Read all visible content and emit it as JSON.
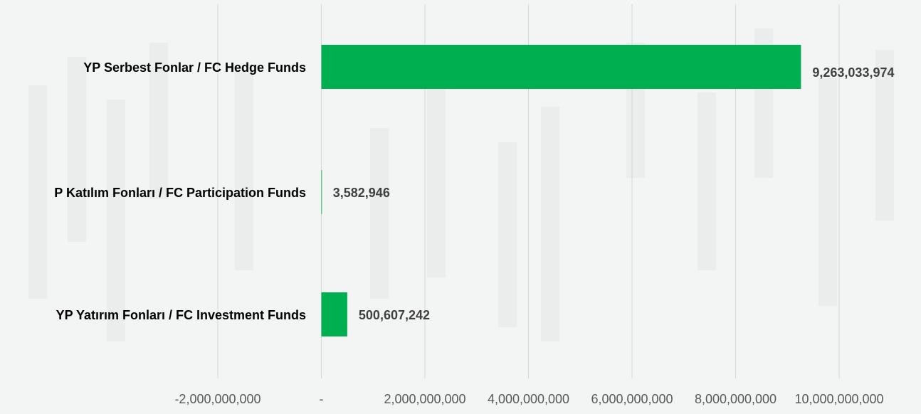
{
  "chart_data": {
    "type": "bar",
    "orientation": "horizontal",
    "categories": [
      "YP Serbest Fonlar / FC Hedge Funds",
      "P Katılım Fonları / FC Participation Funds",
      "YP Yatırım Fonları / FC Investment Funds"
    ],
    "series": [
      {
        "values": [
          9263033974,
          3582946,
          500607242
        ],
        "value_labels": [
          "9,263,033,974",
          "3,582,946",
          "500,607,242"
        ],
        "color": "#00b050"
      }
    ],
    "xlim": [
      -3000000000,
      10000000000
    ],
    "x_ticks": [
      -2000000000,
      0,
      2000000000,
      4000000000,
      6000000000,
      8000000000,
      10000000000
    ],
    "x_tick_labels": [
      "-2,000,000,000",
      "-",
      "2,000,000,000",
      "4,000,000,000",
      "6,000,000,000",
      "8,000,000,000",
      "10,000,000,000"
    ],
    "grid": true,
    "title": "",
    "xlabel": "",
    "ylabel": "",
    "colors": {
      "bar": "#00b050",
      "gridline": "#d6d8d8",
      "category_label": "#000000",
      "value_label": "#404040",
      "tick_label": "#595959",
      "background": "#f3f4f4"
    }
  }
}
